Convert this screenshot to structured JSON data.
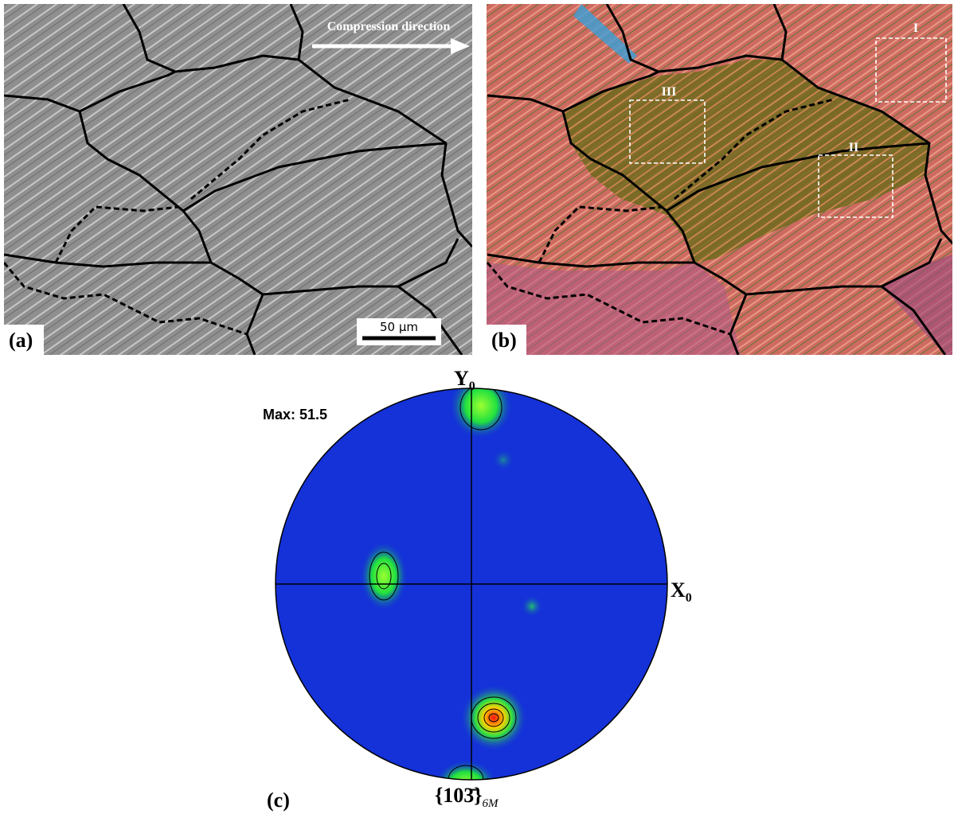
{
  "panels": [
    {
      "label": "(a)",
      "annotation": "Compression direction",
      "scale_bar": "50 µm"
    },
    {
      "label": "(b)",
      "regions": [
        "I",
        "II",
        "III"
      ]
    },
    {
      "label": "(c)",
      "max": "Max: 51.5",
      "axis_y": {
        "text": "Y",
        "sub": "0"
      },
      "axis_x": {
        "text": "X",
        "sub": "0"
      },
      "plane": {
        "text": "{103̄}",
        "sub": "6M"
      }
    }
  ]
}
